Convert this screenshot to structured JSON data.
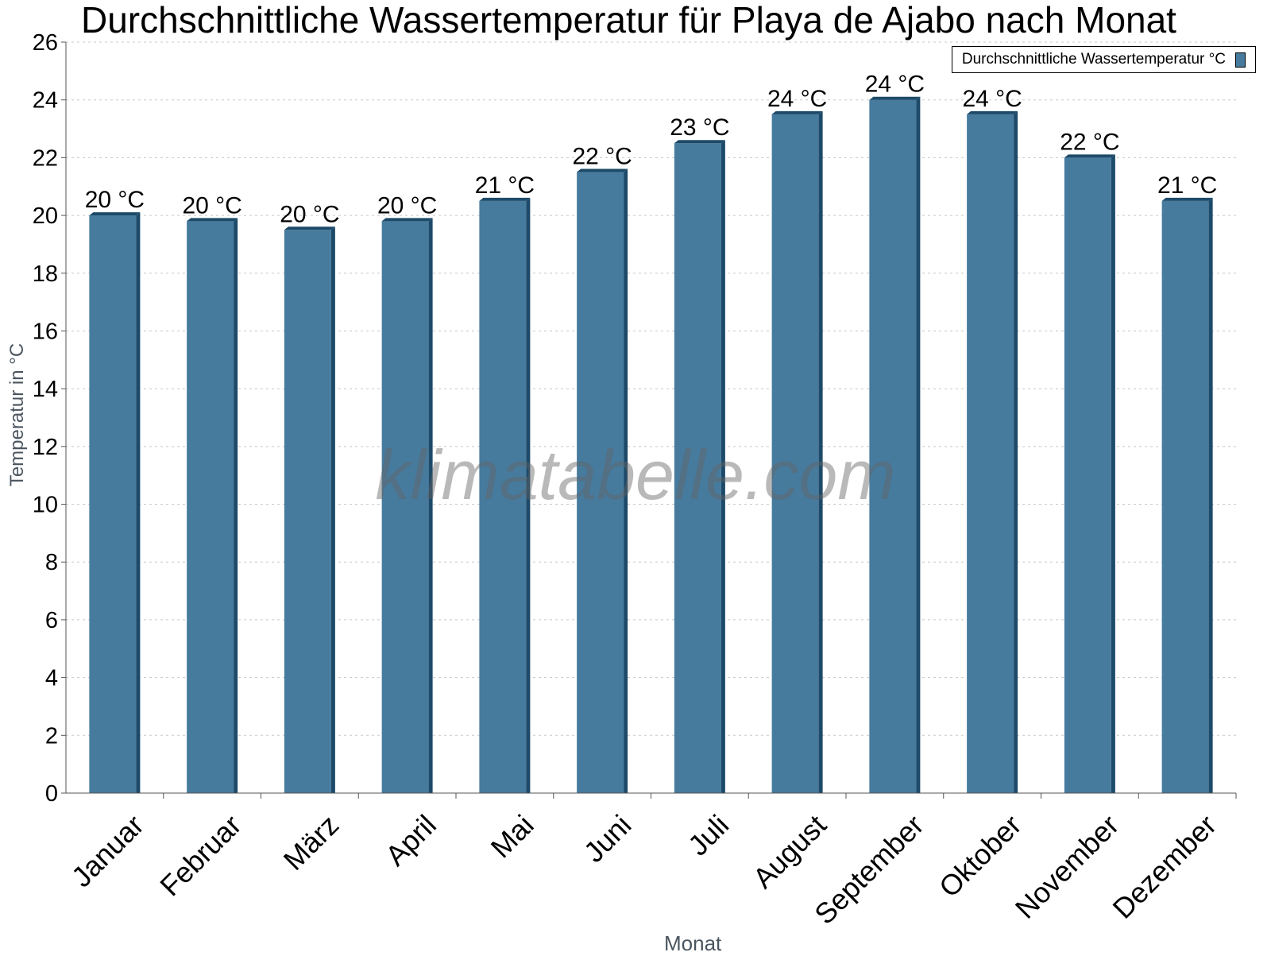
{
  "chart_data": {
    "type": "bar",
    "title": "Durchschnittliche Wassertemperatur für Playa de Ajabo nach Monat",
    "xlabel": "Monat",
    "ylabel": "Temperatur in °C",
    "categories": [
      "Januar",
      "Februar",
      "März",
      "April",
      "Mai",
      "Juni",
      "Juli",
      "August",
      "September",
      "Oktober",
      "November",
      "Dezember"
    ],
    "series": [
      {
        "name": "Durchschnittliche Wassertemperatur °C",
        "values": [
          20.0,
          19.8,
          19.5,
          19.8,
          20.5,
          21.5,
          22.5,
          23.5,
          24.0,
          23.5,
          22.0,
          20.5
        ],
        "data_labels": [
          "20 °C",
          "20 °C",
          "20 °C",
          "20 °C",
          "21 °C",
          "22 °C",
          "23 °C",
          "24 °C",
          "24 °C",
          "24 °C",
          "22 °C",
          "21 °C"
        ]
      }
    ],
    "ylim": [
      0,
      26
    ],
    "yticks": [
      0,
      2,
      4,
      6,
      8,
      10,
      12,
      14,
      16,
      18,
      20,
      22,
      24,
      26
    ],
    "grid": true,
    "legend_position": "top-right",
    "colors": {
      "bar": "#467b9e",
      "bar_side": "#1d4a69",
      "bar_top": "#1d4a69",
      "grid": "#c8c8c8",
      "axis": "#555555"
    }
  },
  "watermark": "klimatabelle.com"
}
